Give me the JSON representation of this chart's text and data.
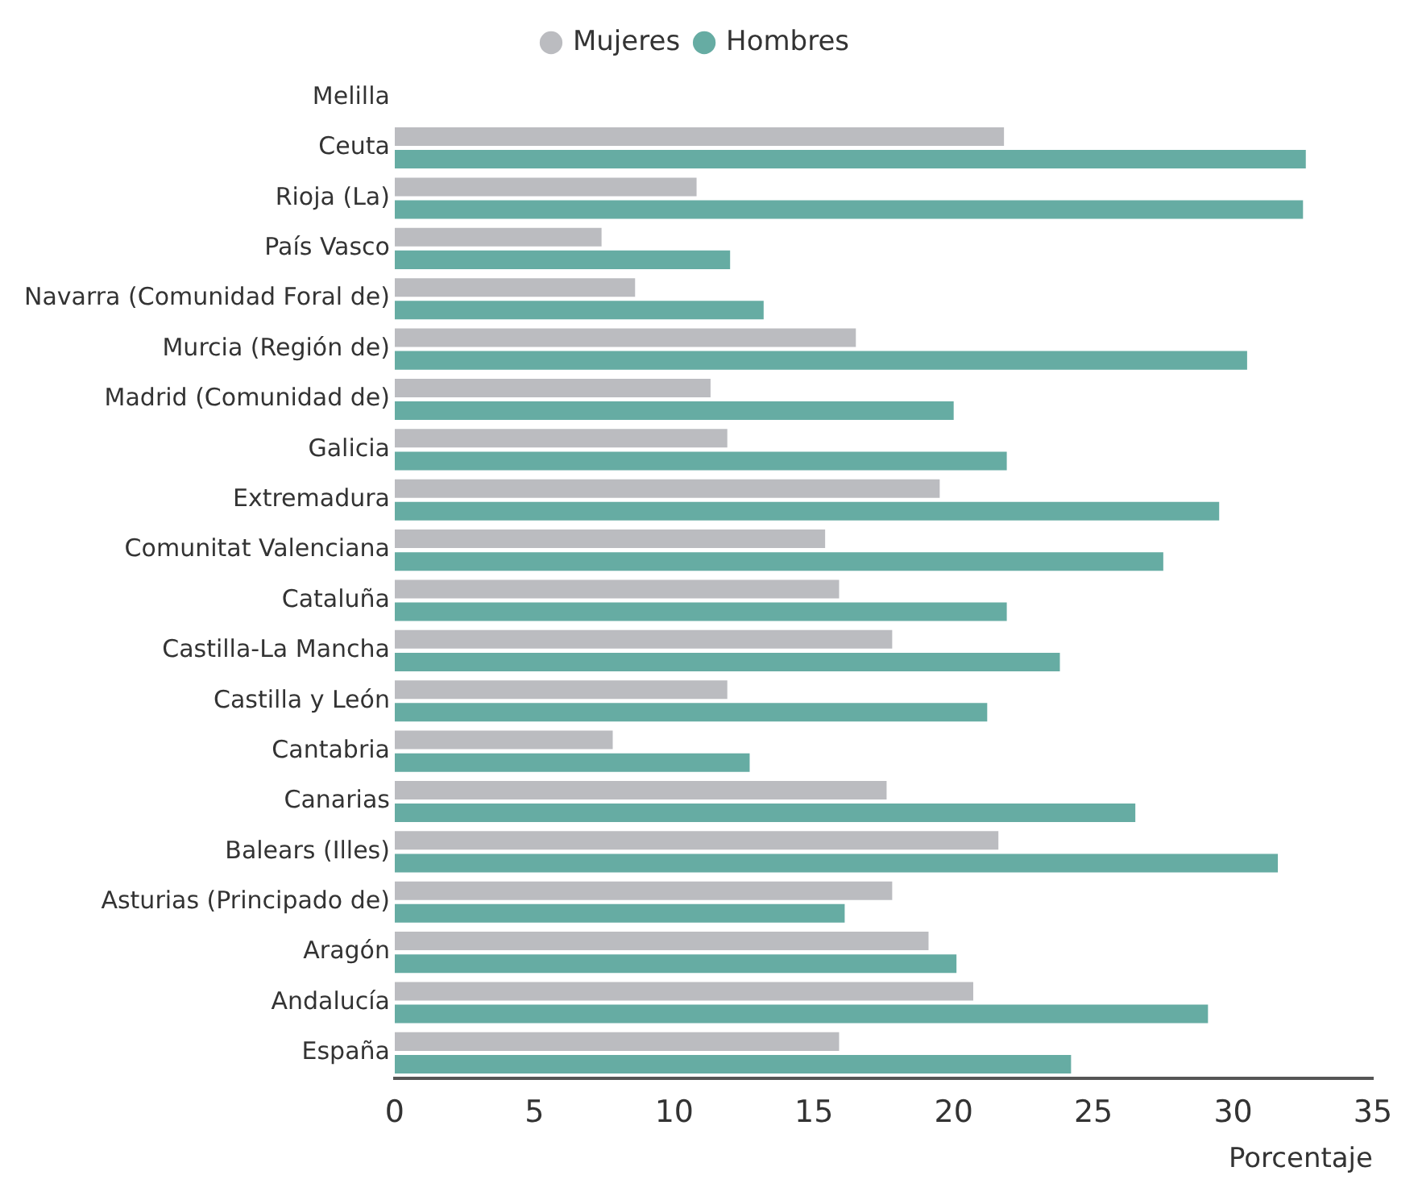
{
  "chart_data": {
    "type": "bar",
    "orientation": "horizontal",
    "xlabel": "Porcentaje",
    "categories": [
      "Melilla",
      "Ceuta",
      "Rioja (La)",
      "País Vasco",
      "Navarra (Comunidad Foral de)",
      "Murcia (Región de)",
      "Madrid (Comunidad de)",
      "Galicia",
      "Extremadura",
      "Comunitat Valenciana",
      "Cataluña",
      "Castilla-La Mancha",
      "Castilla y León",
      "Cantabria",
      "Canarias",
      "Balears (Illes)",
      "Asturias (Principado de)",
      "Aragón",
      "Andalucía",
      "España"
    ],
    "series": [
      {
        "name": "Mujeres",
        "color": "#bbbcc0",
        "values": [
          null,
          21.8,
          10.8,
          7.4,
          8.6,
          16.5,
          11.3,
          11.9,
          19.5,
          15.4,
          15.9,
          17.8,
          11.9,
          7.8,
          17.6,
          21.6,
          17.8,
          19.1,
          20.7,
          15.9
        ]
      },
      {
        "name": "Hombres",
        "color": "#66aca3",
        "values": [
          null,
          32.6,
          32.5,
          12.0,
          13.2,
          30.5,
          20.0,
          21.9,
          29.5,
          27.5,
          21.9,
          23.8,
          21.2,
          12.7,
          26.5,
          31.6,
          16.1,
          20.1,
          29.1,
          24.2
        ]
      }
    ],
    "xlim": [
      0,
      35
    ],
    "xticks": [
      0,
      5,
      10,
      15,
      20,
      25,
      30,
      35
    ],
    "grid": false,
    "legend": "top"
  }
}
